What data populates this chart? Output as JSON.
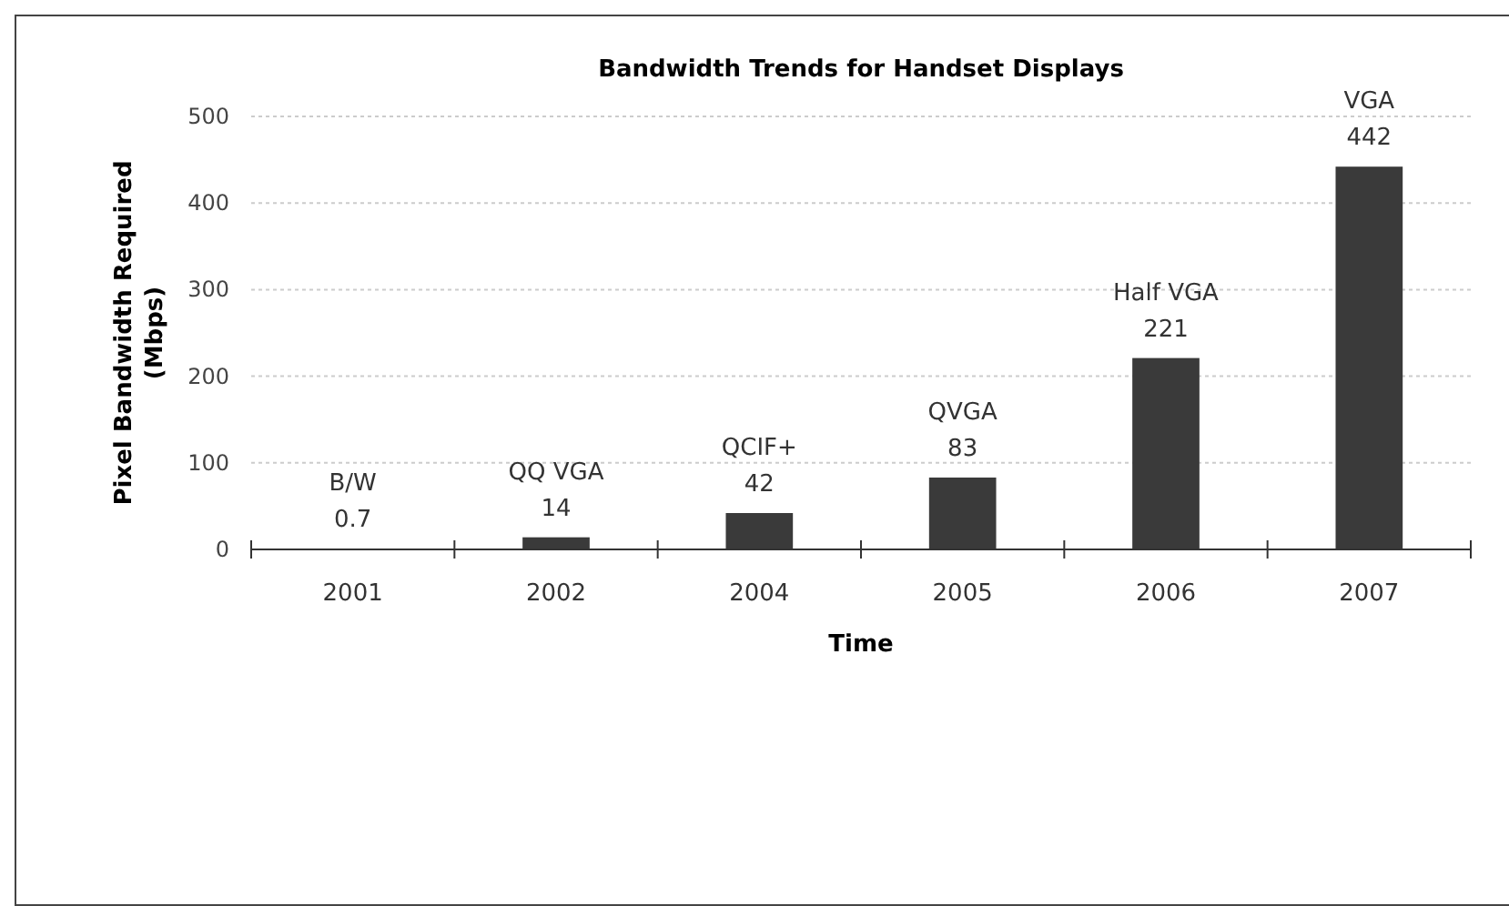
{
  "chart_data": {
    "type": "bar",
    "title": "Bandwidth Trends for Handset Displays",
    "xlabel": "Time",
    "ylabel": "Pixel Bandwidth Required\n(Mbps)",
    "categories": [
      "2001",
      "2002",
      "2004",
      "2005",
      "2006",
      "2007"
    ],
    "values": [
      0.7,
      14,
      42,
      83,
      221,
      442
    ],
    "color": "#3a3a3a",
    "ylim": [
      0,
      500
    ],
    "yticks": [
      0,
      100,
      200,
      300,
      400,
      500
    ],
    "grid": "y",
    "data_labels": true,
    "annotations": [
      {
        "text": "B/W",
        "x": "2001",
        "y": 0.7
      },
      {
        "text": "QQ VGA",
        "x": "2002",
        "y": 14
      },
      {
        "text": "QCIF+",
        "x": "2004",
        "y": 42
      },
      {
        "text": "QVGA",
        "x": "2005",
        "y": 83
      },
      {
        "text": "Half VGA",
        "x": "2006",
        "y": 221
      },
      {
        "text": "VGA",
        "x": "2007",
        "y": 442
      }
    ]
  }
}
